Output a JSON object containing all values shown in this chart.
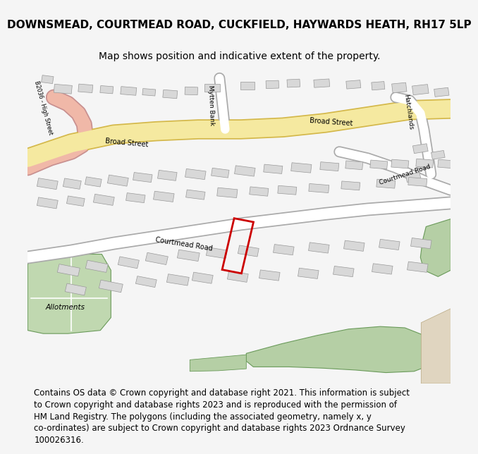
{
  "title": "DOWNSMEAD, COURTMEAD ROAD, CUCKFIELD, HAYWARDS HEATH, RH17 5LP",
  "subtitle": "Map shows position and indicative extent of the property.",
  "footer_lines": [
    "Contains OS data © Crown copyright and database right 2021. This information is subject",
    "to Crown copyright and database rights 2023 and is reproduced with the permission of",
    "HM Land Registry. The polygons (including the associated geometry, namely x, y",
    "co-ordinates) are subject to Crown copyright and database rights 2023 Ordnance Survey",
    "100026316."
  ],
  "background_color": "#f5f5f5",
  "map_bg": "#ffffff",
  "road_yellow": "#f5e9a0",
  "road_yellow_stroke": "#d4b84a",
  "road_white": "#ffffff",
  "road_stroke": "#aaaaaa",
  "road_pink": "#f0b8a8",
  "building_fill": "#d8d8d8",
  "building_stroke": "#999999",
  "green_fill": "#b5cfa5",
  "green_stroke": "#6a9a5a",
  "allotment_fill": "#c0d8b0",
  "beige_fill": "#e0d5c0",
  "highlight_red": "#cc0000",
  "title_fontsize": 11,
  "subtitle_fontsize": 10,
  "footer_fontsize": 8.5,
  "buildings_upper": [
    [
      50,
      75,
      25,
      13,
      -5
    ],
    [
      82,
      74,
      20,
      12,
      -5
    ],
    [
      112,
      76,
      18,
      11,
      -5
    ],
    [
      143,
      78,
      22,
      12,
      -5
    ],
    [
      28,
      60,
      16,
      11,
      -8
    ],
    [
      172,
      80,
      18,
      10,
      -5
    ],
    [
      202,
      83,
      20,
      12,
      -5
    ],
    [
      232,
      78,
      18,
      12,
      -2
    ],
    [
      262,
      73,
      22,
      12,
      0
    ],
    [
      312,
      70,
      20,
      12,
      0
    ],
    [
      347,
      68,
      18,
      12,
      2
    ],
    [
      377,
      66,
      18,
      12,
      3
    ],
    [
      417,
      66,
      22,
      12,
      4
    ],
    [
      462,
      68,
      20,
      12,
      5
    ],
    [
      497,
      70,
      18,
      12,
      5
    ],
    [
      527,
      73,
      20,
      14,
      6
    ],
    [
      557,
      76,
      22,
      14,
      7
    ],
    [
      587,
      80,
      20,
      12,
      7
    ]
  ],
  "buildings_upper_right": [
    [
      557,
      168,
      20,
      12,
      10
    ],
    [
      582,
      178,
      18,
      11,
      10
    ],
    [
      562,
      193,
      18,
      12,
      10
    ],
    [
      547,
      213,
      20,
      12,
      10
    ]
  ],
  "buildings_mid_row1": [
    [
      28,
      223,
      28,
      13,
      -10
    ],
    [
      63,
      223,
      24,
      13,
      -10
    ],
    [
      93,
      220,
      22,
      12,
      -10
    ],
    [
      128,
      218,
      28,
      13,
      -10
    ],
    [
      163,
      213,
      26,
      12,
      -8
    ],
    [
      198,
      210,
      26,
      13,
      -8
    ],
    [
      238,
      208,
      28,
      13,
      -8
    ],
    [
      273,
      206,
      24,
      12,
      -8
    ],
    [
      308,
      203,
      28,
      13,
      -8
    ],
    [
      348,
      200,
      26,
      12,
      -6
    ],
    [
      388,
      198,
      28,
      13,
      -6
    ],
    [
      428,
      196,
      26,
      12,
      -5
    ],
    [
      463,
      194,
      24,
      12,
      -5
    ],
    [
      498,
      193,
      24,
      12,
      -5
    ],
    [
      528,
      192,
      24,
      12,
      -5
    ],
    [
      563,
      191,
      24,
      12,
      -5
    ],
    [
      593,
      192,
      22,
      12,
      -5
    ]
  ],
  "buildings_mid_row2": [
    [
      28,
      253,
      28,
      13,
      -10
    ],
    [
      68,
      250,
      24,
      12,
      -10
    ],
    [
      108,
      248,
      28,
      13,
      -10
    ],
    [
      153,
      245,
      26,
      12,
      -8
    ],
    [
      193,
      243,
      28,
      13,
      -8
    ],
    [
      238,
      240,
      26,
      12,
      -8
    ],
    [
      283,
      237,
      28,
      13,
      -6
    ],
    [
      328,
      235,
      26,
      12,
      -6
    ],
    [
      368,
      233,
      26,
      12,
      -5
    ],
    [
      413,
      230,
      28,
      12,
      -5
    ],
    [
      458,
      226,
      26,
      12,
      -5
    ],
    [
      508,
      223,
      26,
      12,
      -5
    ],
    [
      553,
      220,
      26,
      12,
      -5
    ]
  ],
  "buildings_lower_row1": [
    [
      58,
      358,
      30,
      13,
      -12
    ],
    [
      98,
      352,
      30,
      13,
      -12
    ],
    [
      143,
      346,
      28,
      13,
      -12
    ],
    [
      183,
      340,
      30,
      13,
      -12
    ],
    [
      228,
      335,
      30,
      13,
      -10
    ],
    [
      268,
      331,
      28,
      13,
      -10
    ],
    [
      313,
      328,
      28,
      13,
      -10
    ],
    [
      363,
      326,
      28,
      13,
      -8
    ],
    [
      413,
      323,
      28,
      13,
      -8
    ],
    [
      463,
      320,
      28,
      13,
      -8
    ],
    [
      513,
      318,
      28,
      13,
      -8
    ],
    [
      558,
      316,
      28,
      13,
      -8
    ]
  ],
  "buildings_lower_row2": [
    [
      68,
      388,
      28,
      13,
      -12
    ],
    [
      118,
      383,
      32,
      13,
      -12
    ],
    [
      168,
      376,
      28,
      12,
      -12
    ],
    [
      213,
      373,
      30,
      13,
      -10
    ],
    [
      248,
      370,
      28,
      13,
      -10
    ],
    [
      298,
      368,
      28,
      13,
      -10
    ],
    [
      343,
      366,
      28,
      13,
      -8
    ],
    [
      398,
      363,
      28,
      13,
      -8
    ],
    [
      448,
      360,
      28,
      13,
      -8
    ],
    [
      503,
      356,
      28,
      13,
      -8
    ],
    [
      553,
      353,
      28,
      13,
      -8
    ]
  ]
}
